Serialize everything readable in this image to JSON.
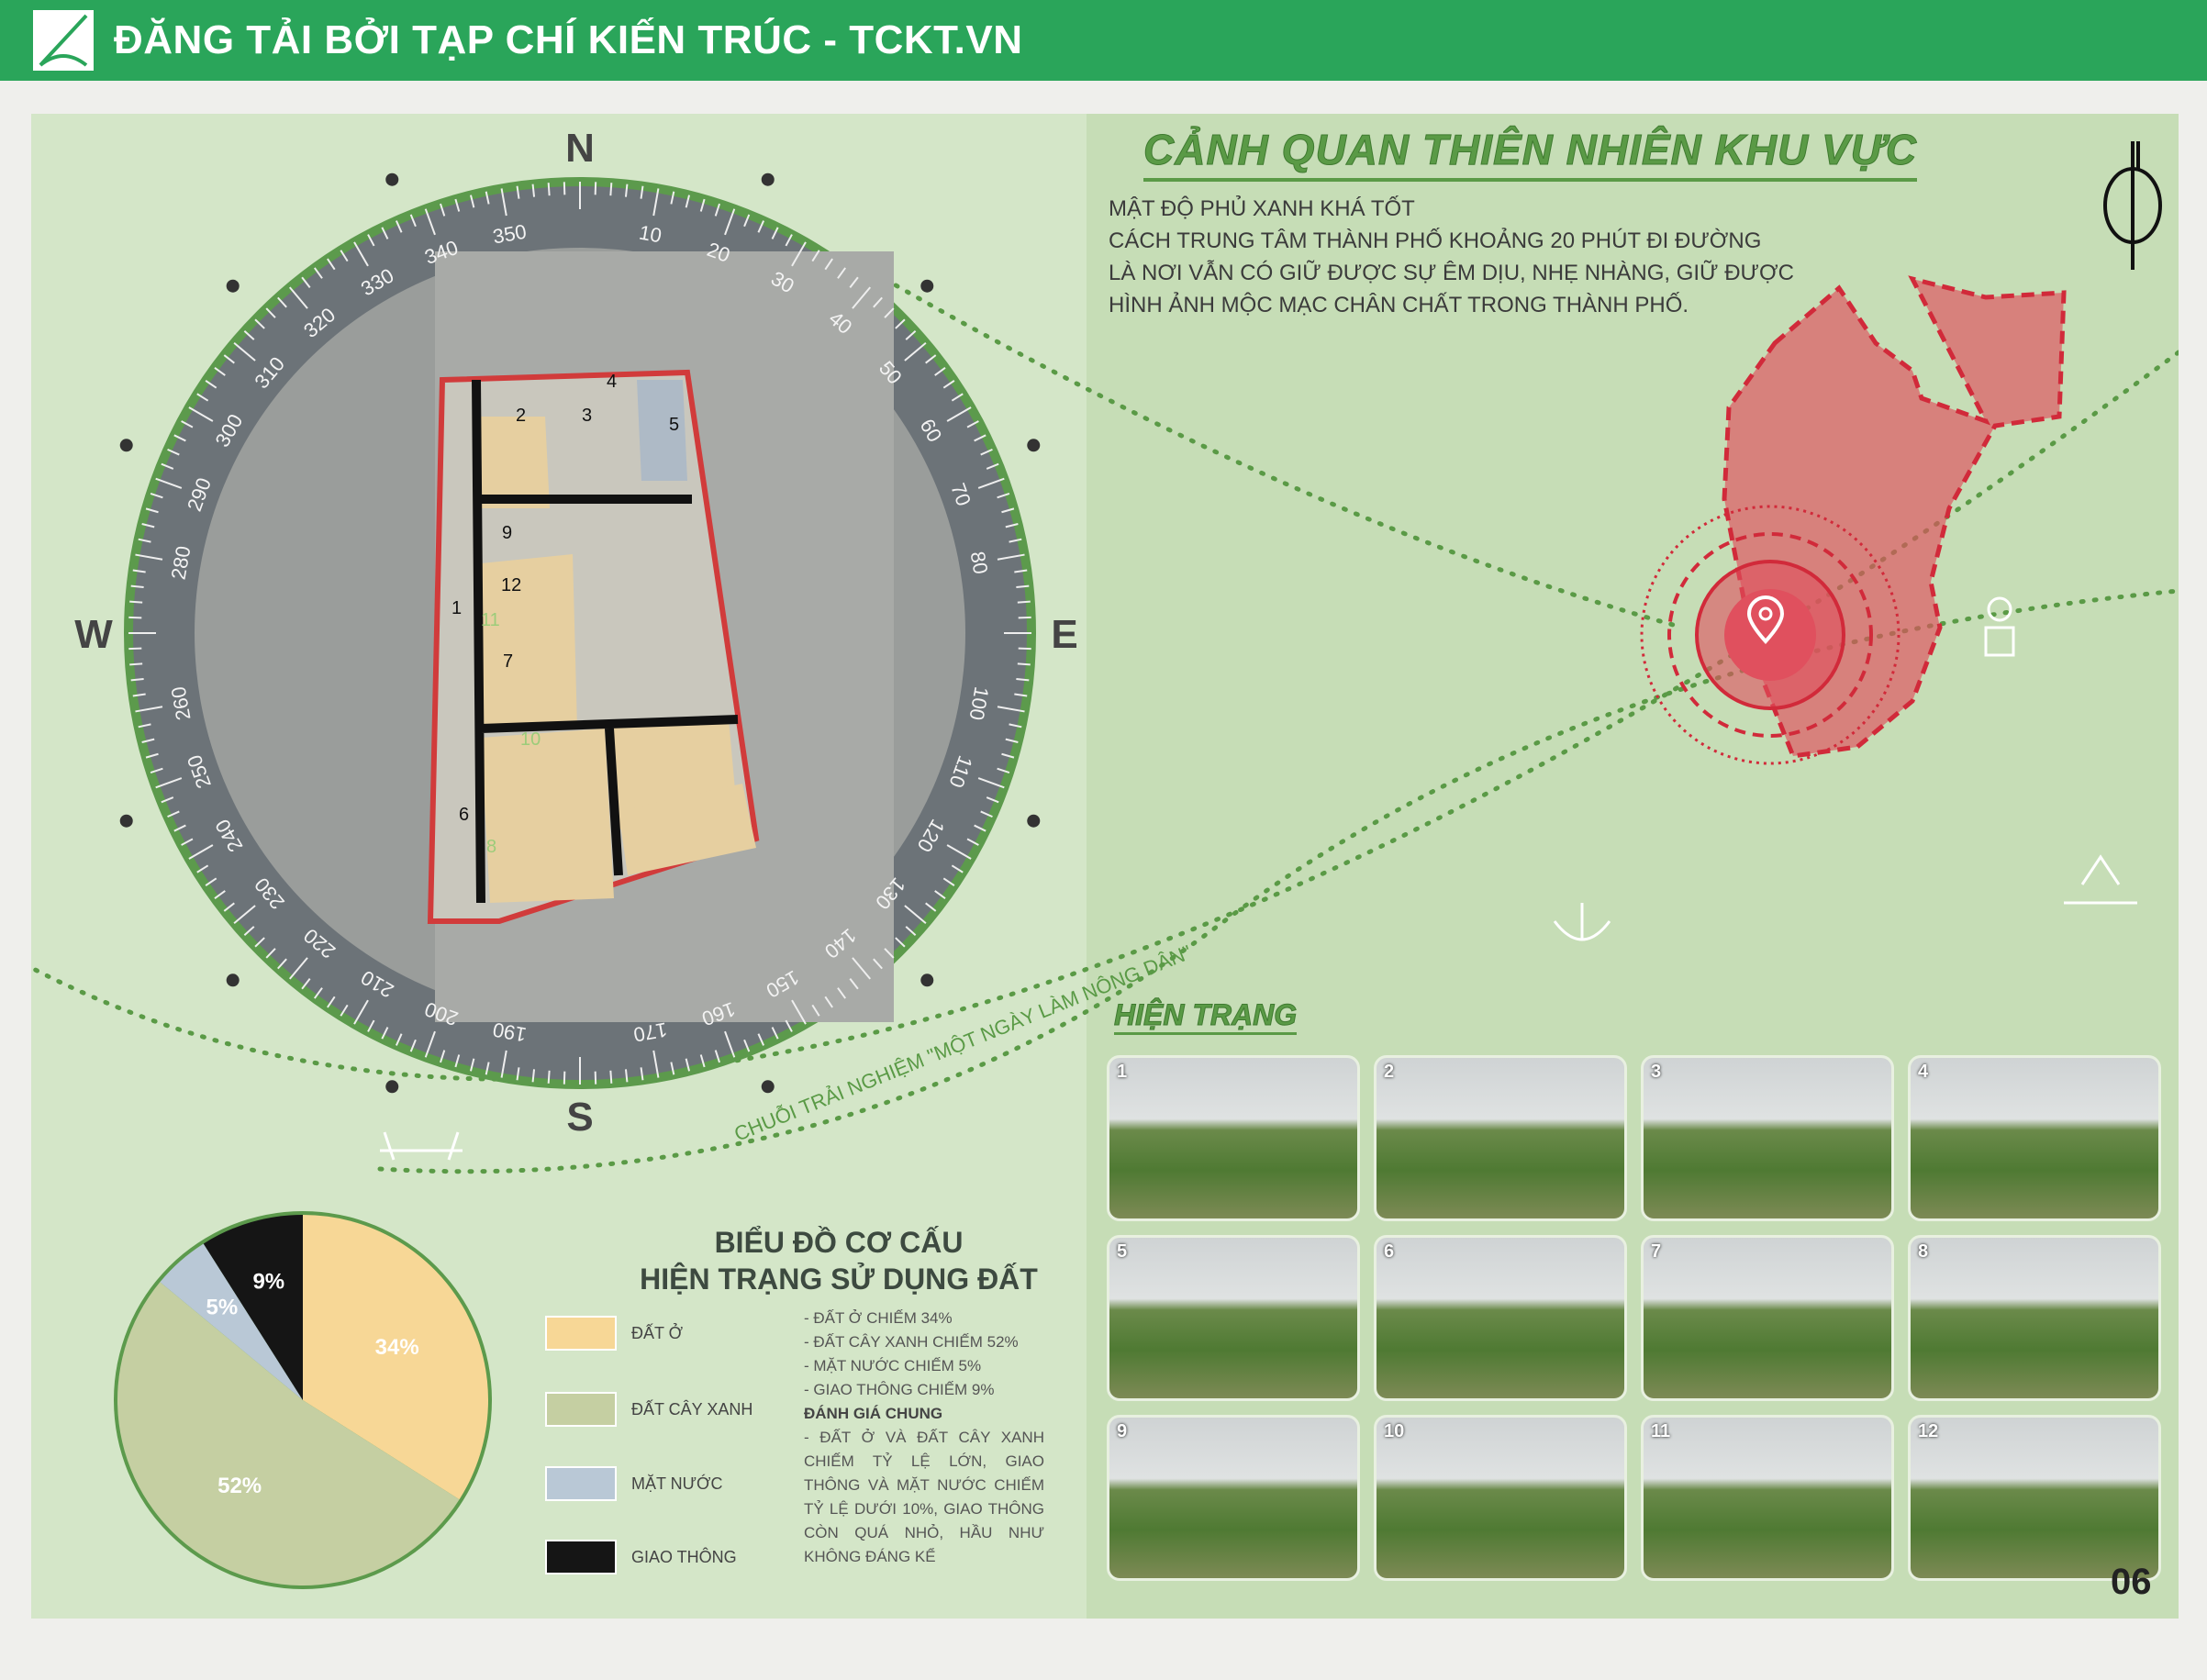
{
  "header": {
    "title": "ĐĂNG TẢI BỞI TẠP CHÍ KIẾN TRÚC - TCKT.VN",
    "brand_color": "#2aa55a"
  },
  "compass": {
    "north": "N",
    "south": "S",
    "east": "E",
    "west": "W",
    "degree_labels": [
      340,
      350,
      10,
      20,
      30,
      40,
      50,
      60,
      70,
      80,
      100,
      110,
      120,
      130,
      140,
      150,
      160,
      170,
      190,
      200,
      210,
      220,
      230,
      240,
      250,
      260,
      280,
      290,
      300,
      310,
      320,
      330
    ],
    "parcel_labels": [
      "1",
      "2",
      "3",
      "4",
      "5",
      "6",
      "7",
      "8",
      "9",
      "10",
      "11",
      "12"
    ]
  },
  "route_label": "CHUỖI TRẢI NGHIỆM \"MỘT NGÀY LÀM NÔNG DÂN\"",
  "landscape": {
    "title": "CẢNH QUAN THIÊN NHIÊN KHU VỰC",
    "lines": [
      "MẬT ĐỘ PHỦ XANH KHÁ TỐT",
      "CÁCH TRUNG TÂM THÀNH PHỐ KHOẢNG 20 PHÚT ĐI ĐƯỜNG",
      "LÀ NƠI VẪN CÓ GIỮ ĐƯỢC SỰ ÊM DỊU, NHẸ NHÀNG, GIỮ ĐƯỢC",
      "HÌNH ẢNH MỘC MẠC CHÂN CHẤT TRONG THÀNH PHỐ."
    ],
    "highlight_color": "#e0505e"
  },
  "current_state": {
    "title": "HIỆN TRẠNG",
    "photos": [
      "1",
      "2",
      "3",
      "4",
      "5",
      "6",
      "7",
      "8",
      "9",
      "10",
      "11",
      "12"
    ]
  },
  "chart_data": {
    "type": "pie",
    "title": "BIỂU ĐỒ CƠ CẤU\nHIỆN TRẠNG SỬ DỤNG ĐẤT",
    "title_lines": [
      "BIỂU ĐỒ CƠ CẤU",
      "HIỆN TRẠNG SỬ DỤNG ĐẤT"
    ],
    "slices": [
      {
        "name": "ĐẤT Ở",
        "value": 34,
        "label": "34%",
        "color": "#f7d796"
      },
      {
        "name": "ĐẤT CÂY XANH",
        "value": 52,
        "label": "52%",
        "color": "#c5cfa2"
      },
      {
        "name": "MẶT NƯỚC",
        "value": 5,
        "label": "5%",
        "color": "#b9c8d6"
      },
      {
        "name": "GIAO THÔNG",
        "value": 9,
        "label": "9%",
        "color": "#151515"
      }
    ],
    "legend_placement": "right"
  },
  "stats": {
    "lines": [
      "- ĐẤT Ở CHIẾM 34%",
      "- ĐẤT CÂY XANH CHIẾM 52%",
      "- MẶT NƯỚC CHIẾM 5%",
      "- GIAO THÔNG CHIẾM 9%"
    ],
    "heading": "ĐÁNH GIÁ CHUNG",
    "body": "- ĐẤT Ở VÀ ĐẤT CÂY XANH CHIẾM TỶ LỆ LỚN, GIAO THÔNG VÀ MẶT NƯỚC CHIẾM TỶ LỆ DƯỚI 10%, GIAO THÔNG CÒN QUÁ NHỎ, HẦU NHƯ KHÔNG ĐÁNG KỂ"
  },
  "page_number": "06"
}
